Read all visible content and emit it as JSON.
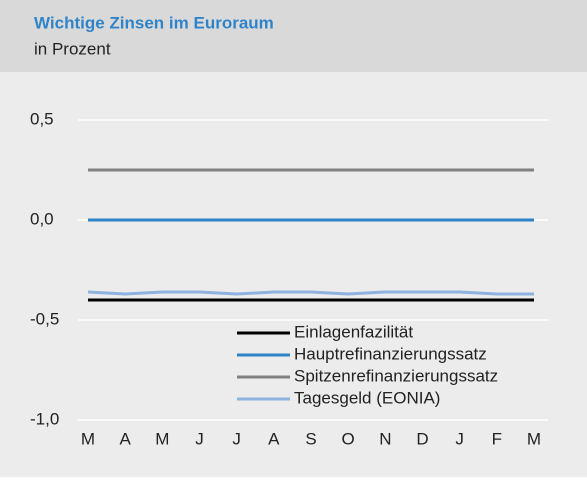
{
  "chart_data": {
    "type": "line",
    "title": "Wichtige Zinsen im Euroraum",
    "subtitle": "in Prozent",
    "categories": [
      "M",
      "A",
      "M",
      "J",
      "J",
      "A",
      "S",
      "O",
      "N",
      "D",
      "J",
      "F",
      "M"
    ],
    "series": [
      {
        "name": "Einlagenfazilität",
        "color": "#000000",
        "values": [
          -0.4,
          -0.4,
          -0.4,
          -0.4,
          -0.4,
          -0.4,
          -0.4,
          -0.4,
          -0.4,
          -0.4,
          -0.4,
          -0.4,
          -0.4
        ]
      },
      {
        "name": "Hauptrefinanzierungssatz",
        "color": "#2f84c9",
        "values": [
          0,
          0,
          0,
          0,
          0,
          0,
          0,
          0,
          0,
          0,
          0,
          0,
          0
        ]
      },
      {
        "name": "Spitzenrefinanzierungssatz",
        "color": "#808080",
        "values": [
          0.25,
          0.25,
          0.25,
          0.25,
          0.25,
          0.25,
          0.25,
          0.25,
          0.25,
          0.25,
          0.25,
          0.25,
          0.25
        ]
      },
      {
        "name": "Tagesgeld (EONIA)",
        "color": "#8fb3df",
        "values": [
          -0.36,
          -0.37,
          -0.36,
          -0.36,
          -0.37,
          -0.36,
          -0.36,
          -0.37,
          -0.36,
          -0.36,
          -0.36,
          -0.37,
          -0.37
        ]
      }
    ],
    "ylim": [
      -1.0,
      0.5
    ],
    "yticks": [
      {
        "value": -1.0,
        "label": "-1,0"
      },
      {
        "value": -0.5,
        "label": "-0,5"
      },
      {
        "value": 0,
        "label": "0,0"
      },
      {
        "value": 0.5,
        "label": "0,5"
      }
    ],
    "grid": true,
    "legend": "lower center"
  }
}
